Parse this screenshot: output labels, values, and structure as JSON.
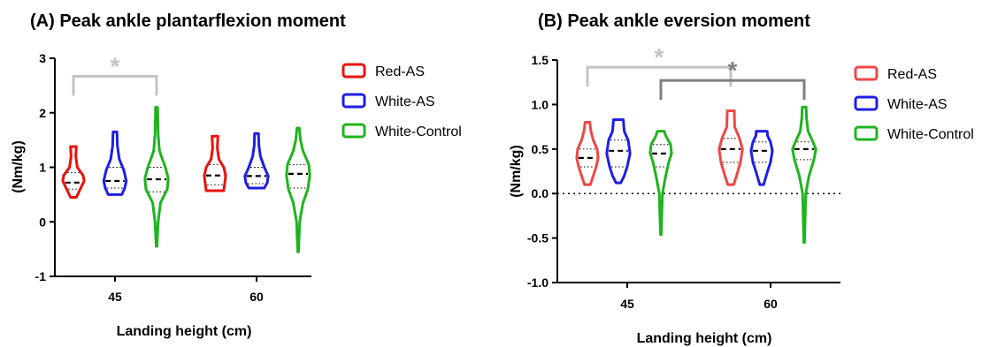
{
  "chart_data": [
    {
      "type": "violin",
      "title": "(A) Peak ankle plantarflexion moment",
      "xlabel": "Landing height (cm)",
      "ylabel": "(Nm/kg)",
      "categories": [
        "45",
        "60"
      ],
      "ylim": [
        -1,
        3
      ],
      "yticks": [
        -1,
        0,
        1,
        2,
        3
      ],
      "ytick_labels": [
        "-1",
        "0",
        "1",
        "2",
        "3"
      ],
      "grid": false,
      "legend_position": "right",
      "series": [
        {
          "name": "Red-AS",
          "color": "#e8120c",
          "groups": [
            {
              "category": "45",
              "min": 0.45,
              "q1": 0.6,
              "median": 0.72,
              "q3": 0.9,
              "max": 1.38,
              "profile": [
                [
                  0.45,
                  0.15
                ],
                [
                  0.6,
                  0.35
                ],
                [
                  0.75,
                  0.55
                ],
                [
                  0.85,
                  0.5
                ],
                [
                  1.0,
                  0.2
                ],
                [
                  1.2,
                  0.12
                ],
                [
                  1.38,
                  0.15
                ]
              ]
            },
            {
              "category": "60",
              "min": 0.57,
              "q1": 0.68,
              "median": 0.85,
              "q3": 1.05,
              "max": 1.57,
              "profile": [
                [
                  0.57,
                  0.45
                ],
                [
                  0.7,
                  0.5
                ],
                [
                  0.85,
                  0.55
                ],
                [
                  1.0,
                  0.45
                ],
                [
                  1.15,
                  0.2
                ],
                [
                  1.35,
                  0.12
                ],
                [
                  1.57,
                  0.15
                ]
              ]
            }
          ]
        },
        {
          "name": "White-AS",
          "color": "#1e1ee6",
          "groups": [
            {
              "category": "45",
              "min": 0.5,
              "q1": 0.62,
              "median": 0.75,
              "q3": 1.0,
              "max": 1.65,
              "profile": [
                [
                  0.5,
                  0.35
                ],
                [
                  0.62,
                  0.5
                ],
                [
                  0.75,
                  0.58
                ],
                [
                  0.95,
                  0.45
                ],
                [
                  1.15,
                  0.22
                ],
                [
                  1.4,
                  0.12
                ],
                [
                  1.65,
                  0.1
                ]
              ]
            },
            {
              "category": "60",
              "min": 0.62,
              "q1": 0.7,
              "median": 0.84,
              "q3": 1.0,
              "max": 1.62,
              "profile": [
                [
                  0.62,
                  0.4
                ],
                [
                  0.72,
                  0.55
                ],
                [
                  0.84,
                  0.6
                ],
                [
                  1.0,
                  0.4
                ],
                [
                  1.2,
                  0.2
                ],
                [
                  1.4,
                  0.12
                ],
                [
                  1.62,
                  0.1
                ]
              ]
            }
          ]
        },
        {
          "name": "White-Control",
          "color": "#1eb41e",
          "groups": [
            {
              "category": "45",
              "min": -0.45,
              "q1": 0.55,
              "median": 0.78,
              "q3": 1.0,
              "max": 2.1,
              "profile": [
                [
                  -0.45,
                  0.02
                ],
                [
                  0.0,
                  0.08
                ],
                [
                  0.35,
                  0.2
                ],
                [
                  0.6,
                  0.55
                ],
                [
                  0.8,
                  0.6
                ],
                [
                  1.0,
                  0.45
                ],
                [
                  1.3,
                  0.15
                ],
                [
                  1.6,
                  0.08
                ],
                [
                  2.1,
                  0.05
                ]
              ]
            },
            {
              "category": "60",
              "min": -0.55,
              "q1": 0.62,
              "median": 0.88,
              "q3": 1.05,
              "max": 1.72,
              "profile": [
                [
                  -0.55,
                  0.02
                ],
                [
                  0.0,
                  0.08
                ],
                [
                  0.35,
                  0.25
                ],
                [
                  0.6,
                  0.5
                ],
                [
                  0.85,
                  0.6
                ],
                [
                  1.05,
                  0.55
                ],
                [
                  1.3,
                  0.25
                ],
                [
                  1.5,
                  0.12
                ],
                [
                  1.72,
                  0.06
                ]
              ]
            }
          ]
        }
      ],
      "annotations": [
        {
          "text": "*",
          "from": [
            "45",
            "Red-AS"
          ],
          "to": [
            "45",
            "White-Control"
          ],
          "at_y": 2.67,
          "color": "#c3c3c3"
        }
      ]
    },
    {
      "type": "violin",
      "title": "(B) Peak ankle eversion moment",
      "xlabel": "Landing height (cm)",
      "ylabel": "(Nm/kg)",
      "categories": [
        "45",
        "60"
      ],
      "ylim": [
        -1.0,
        1.5
      ],
      "yticks": [
        -1.0,
        -0.5,
        0.0,
        0.5,
        1.0,
        1.5
      ],
      "ytick_labels": [
        "-1.0",
        "-0.5",
        "0.0",
        "0.5",
        "1.0",
        "1.5"
      ],
      "reference_line_y": 0.0,
      "grid": false,
      "legend_position": "right",
      "series": [
        {
          "name": "Red-AS",
          "color": "#f04646",
          "groups": [
            {
              "category": "45",
              "min": 0.1,
              "q1": 0.3,
              "median": 0.4,
              "q3": 0.5,
              "max": 0.8,
              "profile": [
                [
                  0.1,
                  0.15
                ],
                [
                  0.2,
                  0.3
                ],
                [
                  0.3,
                  0.45
                ],
                [
                  0.4,
                  0.55
                ],
                [
                  0.5,
                  0.5
                ],
                [
                  0.6,
                  0.3
                ],
                [
                  0.7,
                  0.18
                ],
                [
                  0.8,
                  0.12
                ]
              ]
            },
            {
              "category": "60",
              "min": 0.1,
              "q1": 0.35,
              "median": 0.5,
              "q3": 0.62,
              "max": 0.93,
              "profile": [
                [
                  0.1,
                  0.15
                ],
                [
                  0.2,
                  0.3
                ],
                [
                  0.35,
                  0.5
                ],
                [
                  0.5,
                  0.6
                ],
                [
                  0.62,
                  0.45
                ],
                [
                  0.75,
                  0.2
                ],
                [
                  0.93,
                  0.18
                ]
              ]
            }
          ]
        },
        {
          "name": "White-AS",
          "color": "#1e1ee6",
          "groups": [
            {
              "category": "45",
              "min": 0.12,
              "q1": 0.3,
              "median": 0.48,
              "q3": 0.6,
              "max": 0.83,
              "profile": [
                [
                  0.12,
                  0.12
                ],
                [
                  0.2,
                  0.3
                ],
                [
                  0.3,
                  0.45
                ],
                [
                  0.45,
                  0.6
                ],
                [
                  0.6,
                  0.5
                ],
                [
                  0.7,
                  0.3
                ],
                [
                  0.83,
                  0.25
                ]
              ]
            },
            {
              "category": "60",
              "min": 0.1,
              "q1": 0.35,
              "median": 0.48,
              "q3": 0.58,
              "max": 0.7,
              "profile": [
                [
                  0.1,
                  0.1
                ],
                [
                  0.25,
                  0.3
                ],
                [
                  0.35,
                  0.45
                ],
                [
                  0.48,
                  0.55
                ],
                [
                  0.58,
                  0.45
                ],
                [
                  0.65,
                  0.3
                ],
                [
                  0.7,
                  0.28
                ]
              ]
            }
          ]
        },
        {
          "name": "White-Control",
          "color": "#1eb41e",
          "groups": [
            {
              "category": "45",
              "min": -0.46,
              "q1": 0.3,
              "median": 0.45,
              "q3": 0.55,
              "max": 0.7,
              "profile": [
                [
                  -0.46,
                  0.02
                ],
                [
                  0.0,
                  0.08
                ],
                [
                  0.2,
                  0.25
                ],
                [
                  0.35,
                  0.4
                ],
                [
                  0.45,
                  0.55
                ],
                [
                  0.55,
                  0.5
                ],
                [
                  0.65,
                  0.25
                ],
                [
                  0.7,
                  0.18
                ]
              ]
            },
            {
              "category": "60",
              "min": -0.55,
              "q1": 0.38,
              "median": 0.5,
              "q3": 0.58,
              "max": 0.97,
              "profile": [
                [
                  -0.55,
                  0.02
                ],
                [
                  0.0,
                  0.08
                ],
                [
                  0.2,
                  0.25
                ],
                [
                  0.38,
                  0.5
                ],
                [
                  0.5,
                  0.6
                ],
                [
                  0.58,
                  0.45
                ],
                [
                  0.7,
                  0.2
                ],
                [
                  0.85,
                  0.12
                ],
                [
                  0.97,
                  0.1
                ]
              ]
            }
          ]
        }
      ],
      "annotations": [
        {
          "text": "*",
          "from": [
            "45",
            "Red-AS"
          ],
          "to": [
            "60",
            "Red-AS"
          ],
          "at_y": 1.42,
          "color": "#c3c3c3"
        },
        {
          "text": "*",
          "from": [
            "45",
            "White-Control"
          ],
          "to": [
            "60",
            "White-Control"
          ],
          "at_y": 1.27,
          "color": "#7f7f7f"
        }
      ]
    }
  ]
}
